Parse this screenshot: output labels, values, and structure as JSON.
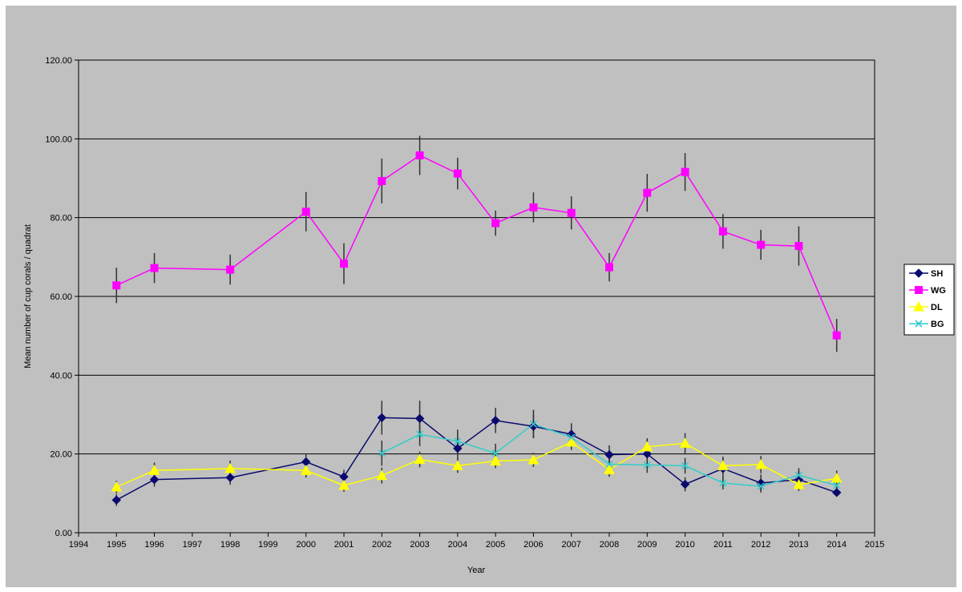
{
  "chart_data": {
    "type": "line",
    "title": "",
    "xlabel": "Year",
    "ylabel": "Mean number of cup corals / quadrat",
    "xlim": [
      1994,
      2015
    ],
    "ylim": [
      0,
      120
    ],
    "x_ticks": [
      "1994",
      "1995",
      "1996",
      "1997",
      "1998",
      "1999",
      "2000",
      "2001",
      "2002",
      "2003",
      "2004",
      "2005",
      "2006",
      "2007",
      "2008",
      "2009",
      "2010",
      "2011",
      "2012",
      "2013",
      "2014",
      "2015"
    ],
    "y_ticks": [
      "0.00",
      "20.00",
      "40.00",
      "60.00",
      "80.00",
      "100.00",
      "120.00"
    ],
    "y_tick_values": [
      0,
      20,
      40,
      60,
      80,
      100,
      120
    ],
    "grid": "horizontal",
    "legend_position": "right",
    "colors": {
      "plot_bg": "#c0c0c0",
      "grid": "#000000",
      "error_bar": "#333333"
    },
    "series": [
      {
        "name": "SH",
        "color": "#0a0a6e",
        "marker": "diamond",
        "x": [
          1995,
          1996,
          1998,
          2000,
          2001,
          2002,
          2003,
          2004,
          2005,
          2006,
          2007,
          2008,
          2009,
          2010,
          2011,
          2012,
          2013,
          2014
        ],
        "y": [
          8.3,
          13.5,
          14.0,
          18.0,
          14.2,
          29.2,
          29.0,
          21.4,
          28.5,
          27.0,
          25.0,
          19.8,
          20.0,
          12.3,
          16.3,
          12.6,
          13.5,
          10.2
        ],
        "err": [
          1.5,
          1.8,
          1.8,
          2.0,
          1.8,
          4.3,
          4.5,
          3.0,
          3.2,
          3.0,
          2.8,
          2.4,
          3.6,
          1.8,
          3.0,
          2.2,
          2.2,
          0.8
        ]
      },
      {
        "name": "WG",
        "color": "#ff00ff",
        "marker": "square",
        "x": [
          1995,
          1996,
          1998,
          2000,
          2001,
          2002,
          2003,
          2004,
          2005,
          2006,
          2007,
          2008,
          2009,
          2010,
          2011,
          2012,
          2013,
          2014
        ],
        "y": [
          62.8,
          67.2,
          66.8,
          81.5,
          68.3,
          89.3,
          95.8,
          91.2,
          78.6,
          82.6,
          81.2,
          67.4,
          86.3,
          91.6,
          76.5,
          73.1,
          72.8,
          50.1
        ],
        "err": [
          4.5,
          3.8,
          3.8,
          5.0,
          5.2,
          5.7,
          5.0,
          4.0,
          3.2,
          3.8,
          4.2,
          3.6,
          4.8,
          4.8,
          4.4,
          3.8,
          5.0,
          4.2
        ]
      },
      {
        "name": "DL",
        "color": "#ffff00",
        "marker": "triangle",
        "x": [
          1995,
          1996,
          1998,
          2000,
          2001,
          2002,
          2003,
          2004,
          2005,
          2006,
          2007,
          2008,
          2009,
          2010,
          2011,
          2012,
          2013,
          2014
        ],
        "y": [
          11.6,
          15.8,
          16.3,
          15.8,
          12.0,
          14.5,
          18.6,
          17.0,
          18.2,
          18.5,
          23.0,
          16.0,
          21.8,
          22.7,
          17.0,
          17.3,
          12.2,
          13.8
        ],
        "err": [
          1.6,
          2.0,
          2.0,
          1.8,
          1.6,
          2.0,
          2.0,
          1.8,
          1.8,
          1.8,
          2.0,
          1.8,
          2.2,
          2.6,
          2.0,
          2.2,
          1.6,
          2.0
        ]
      },
      {
        "name": "BG",
        "color": "#33cccc",
        "marker": "x",
        "x": [
          2002,
          2003,
          2004,
          2005,
          2006,
          2007,
          2008,
          2009,
          2010,
          2011,
          2012,
          2013,
          2014
        ],
        "y": [
          20.2,
          25.0,
          23.2,
          20.2,
          27.6,
          24.2,
          17.4,
          17.2,
          17.0,
          12.6,
          11.8,
          14.6,
          12.0
        ],
        "err": [
          3.2,
          3.0,
          3.0,
          2.4,
          3.6,
          2.4,
          2.0,
          2.0,
          2.0,
          1.6,
          1.6,
          1.8,
          1.6
        ]
      }
    ]
  }
}
